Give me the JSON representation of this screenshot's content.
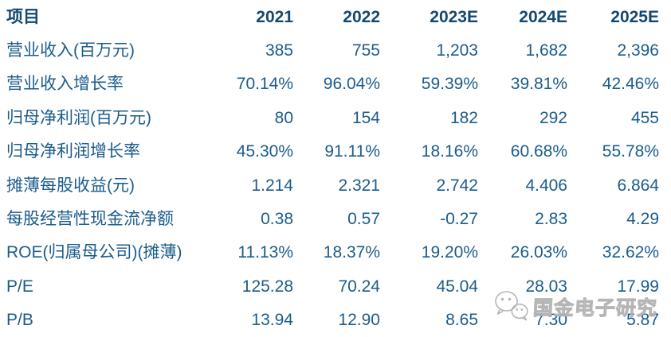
{
  "table": {
    "header": {
      "item_label": "项目",
      "columns": [
        "2021",
        "2022",
        "2023E",
        "2024E",
        "2025E"
      ]
    },
    "rows": [
      {
        "label": "营业收入(百万元)",
        "values": [
          "385",
          "755",
          "1,203",
          "1,682",
          "2,396"
        ]
      },
      {
        "label": "营业收入增长率",
        "values": [
          "70.14%",
          "96.04%",
          "59.39%",
          "39.81%",
          "42.46%"
        ]
      },
      {
        "label": "归母净利润(百万元)",
        "values": [
          "80",
          "154",
          "182",
          "292",
          "455"
        ]
      },
      {
        "label": "归母净利润增长率",
        "values": [
          "45.30%",
          "91.11%",
          "18.16%",
          "60.68%",
          "55.78%"
        ]
      },
      {
        "label": "摊薄每股收益(元)",
        "values": [
          "1.214",
          "2.321",
          "2.742",
          "4.406",
          "6.864"
        ]
      },
      {
        "label": "每股经营性现金流净额",
        "values": [
          "0.38",
          "0.57",
          "-0.27",
          "2.83",
          "4.29"
        ]
      },
      {
        "label": "ROE(归属母公司)(摊薄)",
        "values": [
          "11.13%",
          "18.37%",
          "19.20%",
          "26.03%",
          "32.62%"
        ]
      },
      {
        "label": "P/E",
        "values": [
          "125.28",
          "70.24",
          "45.04",
          "28.03",
          "17.99"
        ]
      },
      {
        "label": "P/B",
        "values": [
          "13.94",
          "12.90",
          "8.65",
          "7.30",
          "5.87"
        ]
      }
    ]
  },
  "watermark": {
    "text": "国金电子研究",
    "icon": "wechat-icon"
  },
  "colors": {
    "header_text": "#14486f",
    "body_text": "#1b5c8c",
    "watermark": "#b2b2b2",
    "background": "#ffffff"
  }
}
